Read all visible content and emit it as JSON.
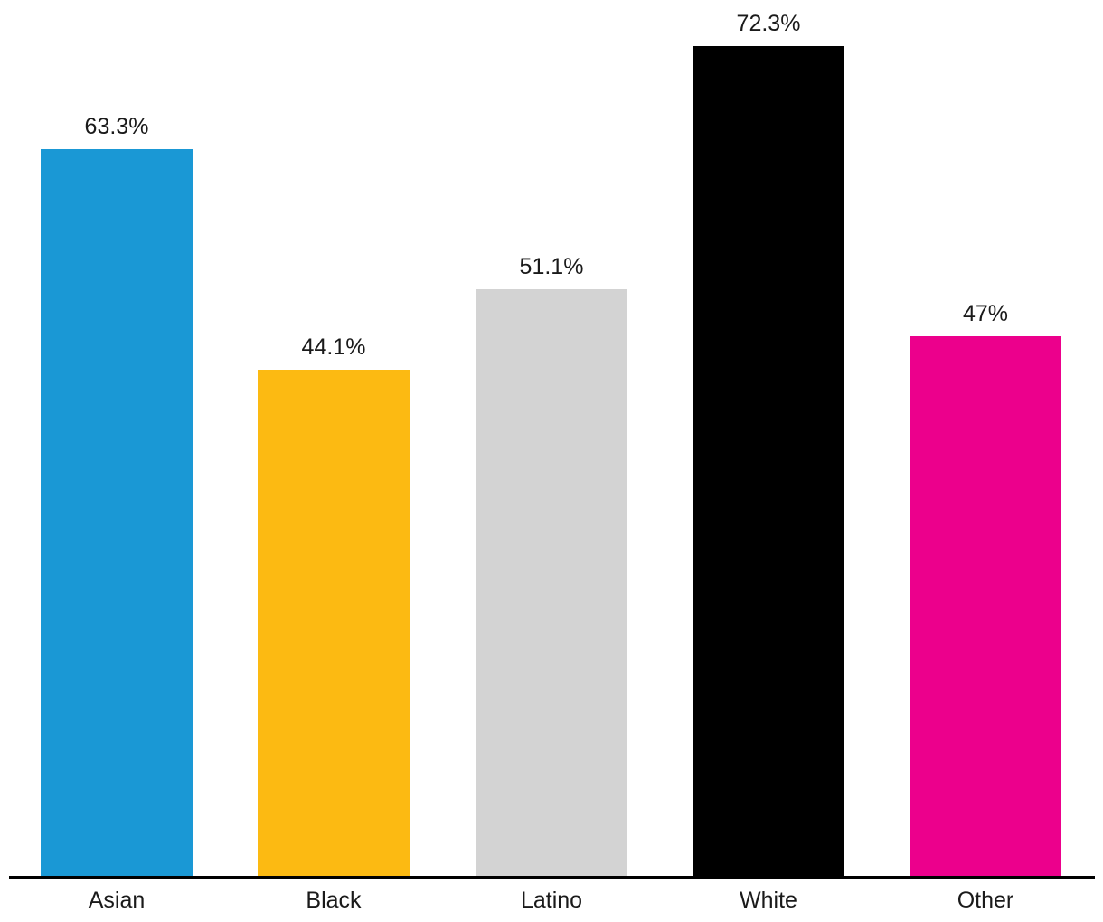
{
  "chart_data": {
    "type": "bar",
    "categories": [
      "Asian",
      "Black",
      "Latino",
      "White",
      "Other"
    ],
    "values": [
      63.3,
      44.1,
      51.1,
      72.3,
      47
    ],
    "value_labels": [
      "63.3%",
      "44.1%",
      "51.1%",
      "72.3%",
      "47%"
    ],
    "bar_colors": [
      "#1a98d5",
      "#fcba12",
      "#d3d3d3",
      "#000000",
      "#ec008c"
    ],
    "title": "",
    "xlabel": "",
    "ylabel": "",
    "ylim": [
      0,
      76.3
    ],
    "grid": false,
    "legend": false,
    "label_color": "#1a1a1a",
    "axis_line_color": "#000000",
    "background_color": "#ffffff"
  }
}
